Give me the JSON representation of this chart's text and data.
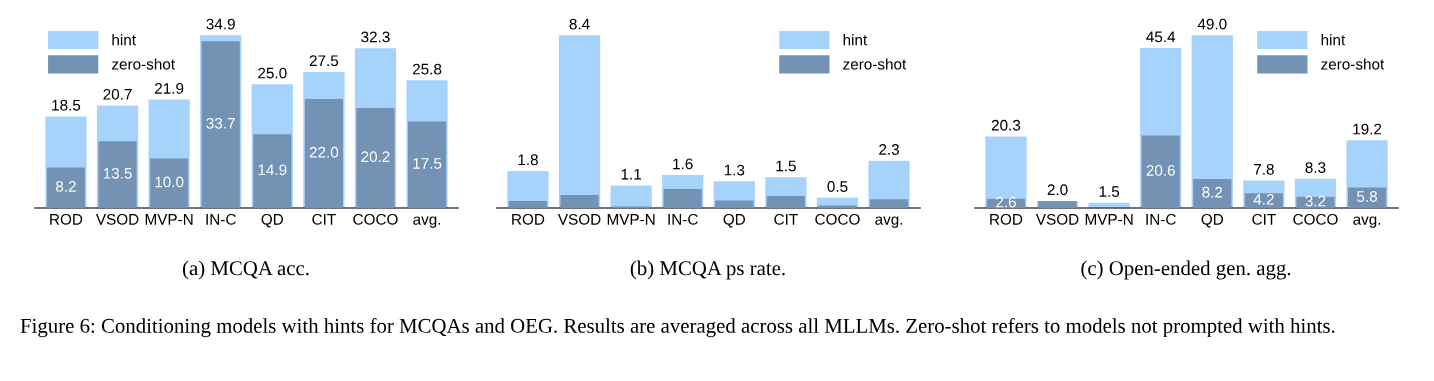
{
  "chart_data": [
    {
      "type": "bar",
      "subtitle": "(a) MCQA acc.",
      "categories": [
        "ROD",
        "VSOD",
        "MVP-N",
        "IN-C",
        "QD",
        "CIT",
        "COCO",
        "avg."
      ],
      "legend": "top left",
      "tick_labels": "x",
      "series": [
        {
          "name": "hint",
          "color": "#a6d3fb",
          "values": [
            18.5,
            20.7,
            21.9,
            34.9,
            25.0,
            27.5,
            32.3,
            25.8
          ],
          "value_labels": [
            "18.5",
            "20.7",
            "21.9",
            "34.9",
            "25.0",
            "27.5",
            "32.3",
            "25.8"
          ]
        },
        {
          "name": "zero-shot",
          "color": "#7493b4",
          "values": [
            8.2,
            13.5,
            10.0,
            33.7,
            14.9,
            22.0,
            20.2,
            17.5
          ],
          "value_labels": [
            "8.2",
            "13.5",
            "10.0",
            "33.7",
            "14.9",
            "22.0",
            "20.2",
            "17.5"
          ]
        }
      ],
      "annotations": [
        "Figure 6: Conditioning models with hints for MCQAs and OEG. Results are averaged across all MLLMs. Zero-shot refers to models not prompted with hints."
      ]
    },
    {
      "type": "bar",
      "subtitle": "(b) MCQA ps rate.",
      "categories": [
        "ROD",
        "VSOD",
        "MVP-N",
        "IN-C",
        "QD",
        "CIT",
        "COCO",
        "avg."
      ],
      "legend": "top right",
      "tick_labels": "x",
      "series": [
        {
          "name": "hint",
          "color": "#a6d3fb",
          "values": [
            1.8,
            8.4,
            1.1,
            1.6,
            1.3,
            1.5,
            0.5,
            2.3
          ],
          "value_labels": [
            "1.8",
            "8.4",
            "1.1",
            "1.6",
            "1.3",
            "1.5",
            "0.5",
            "2.3"
          ]
        },
        {
          "name": "zero-shot",
          "color": "#7493b4",
          "values": [
            0.34,
            0.63,
            0.07,
            0.93,
            0.37,
            0.58,
            0.12,
            0.42
          ],
          "value_labels": [
            null,
            null,
            null,
            null,
            null,
            null,
            null,
            null
          ]
        }
      ]
    },
    {
      "type": "bar",
      "subtitle": "(c) Open-ended gen. agg.",
      "categories": [
        "ROD",
        "VSOD",
        "MVP-N",
        "IN-C",
        "QD",
        "CIT",
        "COCO",
        "avg."
      ],
      "legend": "top right",
      "tick_labels": "x",
      "series": [
        {
          "name": "hint",
          "color": "#a6d3fb",
          "values": [
            20.3,
            2.0,
            1.5,
            45.4,
            49.0,
            7.8,
            8.3,
            19.2
          ],
          "value_labels": [
            "20.3",
            "2.0",
            "1.5",
            "45.4",
            "49.0",
            "7.8",
            "8.3",
            "19.2"
          ]
        },
        {
          "name": "zero-shot",
          "color": "#7493b4",
          "values": [
            2.6,
            2.0,
            null,
            20.6,
            8.2,
            4.2,
            3.2,
            5.8
          ],
          "value_labels": [
            "2.6",
            null,
            null,
            "20.6",
            "8.2",
            "4.2",
            "3.2",
            "5.8"
          ]
        }
      ]
    }
  ]
}
